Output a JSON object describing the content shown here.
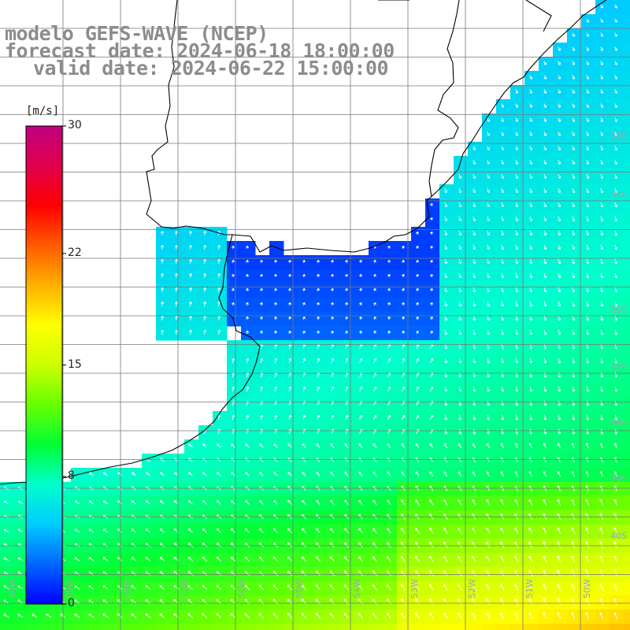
{
  "header": {
    "line1": "modelo GEFS-WAVE (NCEP)",
    "line2": "forecast date: 2024-06-18 18:00:00",
    "line3": "valid date: 2024-06-22 15:00:00"
  },
  "colorbar": {
    "unit": "[m/s]",
    "ticks": [
      {
        "label": "30",
        "value": 30
      },
      {
        "label": "22",
        "value": 22
      },
      {
        "label": "15",
        "value": 15
      },
      {
        "label": "8",
        "value": 8
      },
      {
        "label": "0",
        "value": 0
      }
    ],
    "min": 0,
    "max": 30,
    "colors": [
      "#0000ff",
      "#0066ff",
      "#00ccff",
      "#00ffcc",
      "#00ff33",
      "#66ff00",
      "#ccff00",
      "#ffff00",
      "#ffb000",
      "#ff5a00",
      "#ff0000",
      "#e0004c",
      "#c00080"
    ]
  },
  "lat_labels": [
    "30S",
    "35S",
    "36S",
    "37S",
    "38S",
    "39S",
    "40S"
  ],
  "lon_labels": [
    "60W",
    "59W",
    "58W",
    "57W",
    "56W",
    "55W",
    "54W",
    "53W",
    "52W",
    "51W",
    "50W"
  ],
  "map_colors": {
    "land": "#ffffff",
    "grid": "#777777",
    "coast": "#000000",
    "arrow": "#ffffff"
  }
}
